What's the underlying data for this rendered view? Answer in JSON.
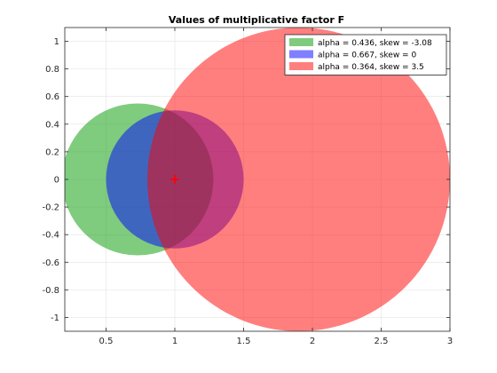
{
  "chart_data": {
    "type": "scatter",
    "title": "Values of multiplicative factor F",
    "xlabel": "",
    "ylabel": "",
    "xlim": [
      0.2,
      3.0
    ],
    "ylim": [
      -1.1,
      1.1
    ],
    "xticks": [
      0.5,
      1,
      1.5,
      2,
      2.5,
      3
    ],
    "xtick_labels": [
      "0.5",
      "1",
      "1.5",
      "2",
      "2.5",
      "3"
    ],
    "yticks": [
      1,
      0.8,
      0.6,
      0.4,
      0.2,
      0,
      -0.2,
      -0.4,
      -0.6,
      -0.8,
      -1
    ],
    "ytick_labels": [
      "1",
      "0.8",
      "0.6",
      "0.4",
      "0.2",
      "0",
      "-0.2",
      "-0.4",
      "-0.6",
      "-0.8",
      "-1"
    ],
    "grid": true,
    "legend_position": "top-right",
    "series": [
      {
        "name": "alpha = 0.436, skew = -3.08",
        "color": "#009900",
        "opacity": 0.5,
        "center": [
          0.73,
          0
        ],
        "radius": 0.55
      },
      {
        "name": "alpha = 0.667, skew = 0",
        "color": "#0000ff",
        "opacity": 0.5,
        "center": [
          1.0,
          0
        ],
        "radius": 0.5
      },
      {
        "name": "alpha = 0.364, skew = 3.5",
        "color": "#ff0000",
        "opacity": 0.5,
        "center": [
          1.9,
          0
        ],
        "radius": 1.1
      }
    ],
    "marker": {
      "symbol": "+",
      "x": 1,
      "y": 0,
      "color": "#ff0000"
    }
  }
}
